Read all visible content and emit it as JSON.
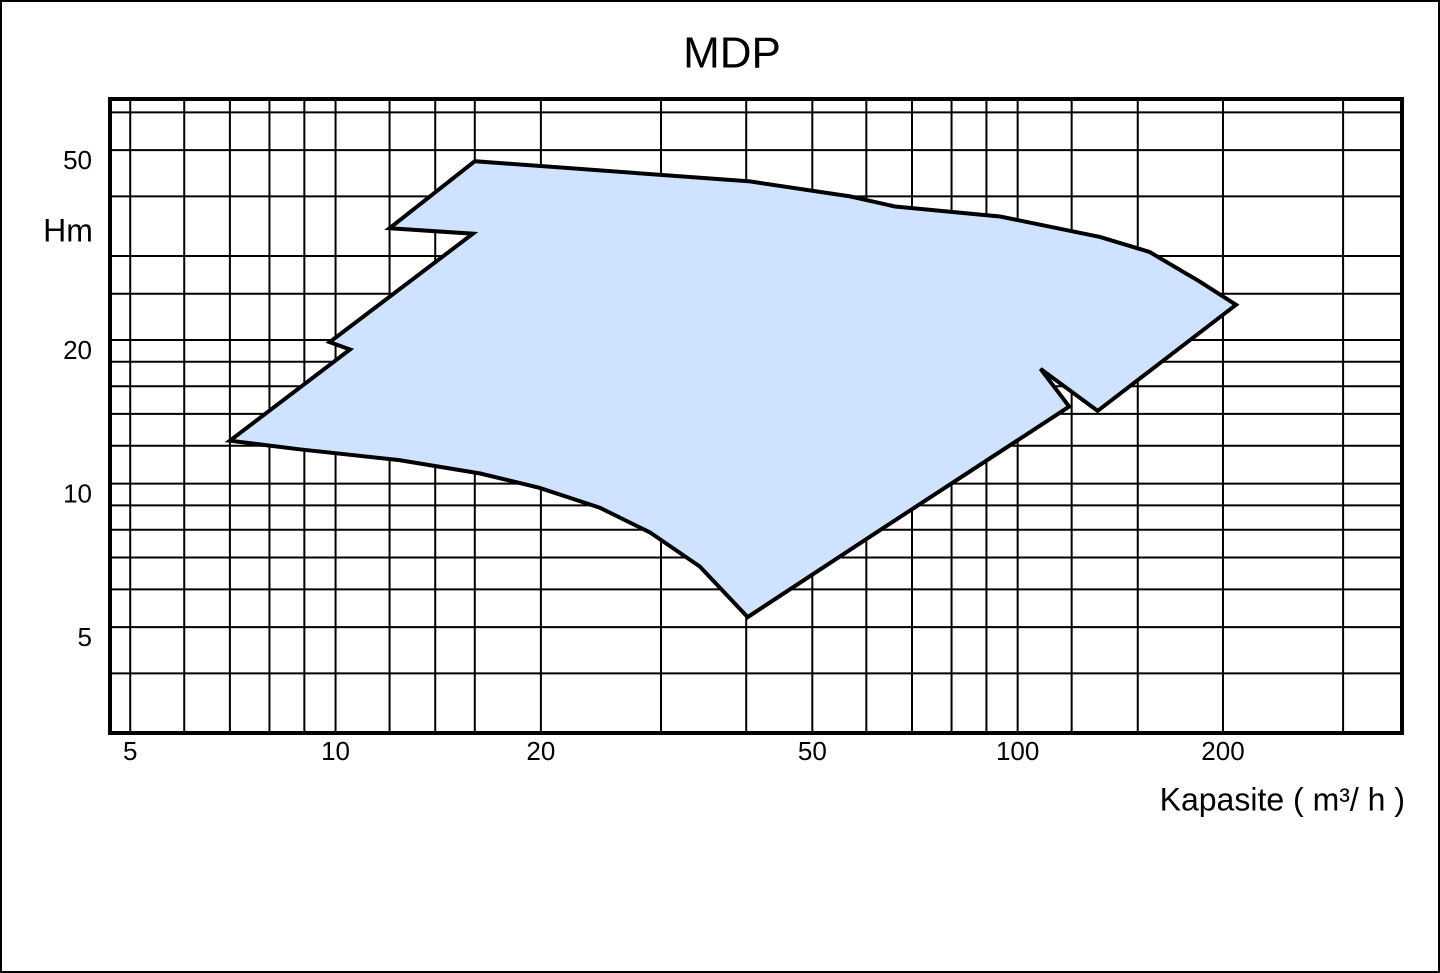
{
  "chart_data": {
    "type": "area",
    "title": "MDP",
    "y_label": "Hm",
    "x_label": "Kapasite ( m³/ h )",
    "log_x": true,
    "log_y": true,
    "grid": true,
    "xlim": [
      4.67,
      366
    ],
    "ylim": [
      3,
      64
    ],
    "xticks": [
      5,
      10,
      20,
      50,
      100,
      200
    ],
    "yticks": [
      5,
      10,
      20,
      50
    ],
    "x_minor_ticks": [
      6,
      7,
      8,
      9,
      12,
      14,
      16,
      30,
      40,
      60,
      70,
      80,
      90,
      120,
      150,
      300
    ],
    "y_minor_ticks": [
      3,
      4,
      6,
      7,
      8,
      9,
      12,
      14,
      16,
      18,
      25,
      30,
      40,
      60
    ],
    "series": [
      {
        "color": "#cfe2ff",
        "x": [
          7.0,
          8.85,
          12.4,
          16.3,
          19.9,
          24.4,
          28.9,
          34.2,
          40.2,
          63.8,
          119,
          108,
          131,
          209,
          185,
          156,
          132,
          94.2,
          66.1,
          56.8,
          40.5,
          16.0,
          12.0,
          15.9,
          9.8,
          10.5
        ],
        "values": [
          12.3,
          11.8,
          11.2,
          10.5,
          9.8,
          8.9,
          7.9,
          6.7,
          5.25,
          8.1,
          14.5,
          17.4,
          14.2,
          23.7,
          26.5,
          30.6,
          32.9,
          36.3,
          38.1,
          40.0,
          43.0,
          47.4,
          34.3,
          33.4,
          19.8,
          19.1
        ]
      }
    ]
  }
}
